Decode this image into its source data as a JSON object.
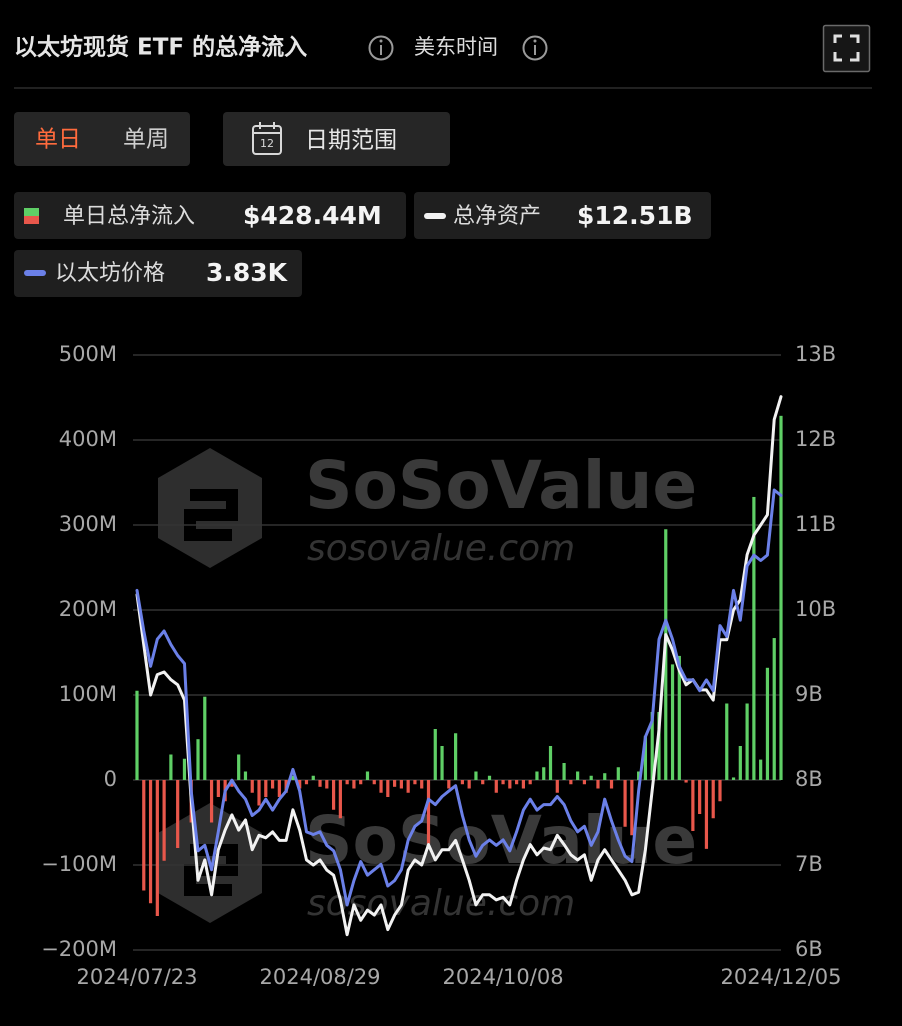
{
  "header": {
    "title": "以太坊现货 ETF 的总净流入",
    "timezone": "美东时间"
  },
  "controls": {
    "tabs": [
      "单日",
      "单周"
    ],
    "active_tab": 0,
    "date_range": "日期范围",
    "calendar_day": "12"
  },
  "watermark": {
    "brand": "SoSoValue",
    "site": "sosovalue.com"
  },
  "chart_data": {
    "type": "bar",
    "categories": [
      "2024/07/23",
      null,
      null,
      null,
      null,
      null,
      null,
      null,
      null,
      null,
      null,
      null,
      null,
      null,
      null,
      null,
      null,
      null,
      null,
      null,
      null,
      null,
      null,
      null,
      null,
      null,
      null,
      "2024/08/29",
      null,
      null,
      null,
      null,
      null,
      null,
      null,
      null,
      null,
      null,
      null,
      null,
      null,
      null,
      null,
      null,
      null,
      null,
      null,
      null,
      null,
      null,
      null,
      null,
      null,
      null,
      "2024/10/08",
      null,
      null,
      null,
      null,
      null,
      null,
      null,
      null,
      null,
      null,
      null,
      null,
      null,
      null,
      null,
      null,
      null,
      null,
      null,
      null,
      null,
      null,
      null,
      null,
      null,
      null,
      null,
      null,
      null,
      null,
      null,
      null,
      null,
      null,
      null,
      null,
      null,
      null,
      null,
      null,
      "2024/12/05"
    ],
    "ylim": [
      -200,
      500
    ],
    "yticks": [
      {
        "value": 500,
        "label": "500M"
      },
      {
        "value": 400,
        "label": "400M"
      },
      {
        "value": 300,
        "label": "300M"
      },
      {
        "value": 200,
        "label": "200M"
      },
      {
        "value": 100,
        "label": "100M"
      },
      0,
      {
        "value": -100,
        "label": "−100M"
      },
      {
        "value": -200,
        "label": "−200M"
      }
    ],
    "y2lim": [
      6,
      13
    ],
    "y2ticks": [
      {
        "value": 13,
        "label": "13B"
      },
      {
        "value": 12,
        "label": "12B"
      },
      {
        "value": 11,
        "label": "11B"
      },
      {
        "value": 10,
        "label": "10B"
      },
      {
        "value": 9,
        "label": "9B"
      },
      {
        "value": 8,
        "label": "8B"
      },
      {
        "value": 7,
        "label": "7B"
      },
      {
        "value": 6,
        "label": "6B"
      }
    ],
    "grid": true,
    "series": [
      {
        "name": "单日总净流入",
        "type": "bar",
        "positive_color": "#5fcf66",
        "negative_color": "#e8574b",
        "readout": "$428.44M",
        "values": [
          105,
          -130,
          -145,
          -160,
          -95,
          30,
          -80,
          25,
          -50,
          48,
          98,
          -50,
          -20,
          -25,
          -8,
          30,
          10,
          -15,
          -30,
          -20,
          -10,
          -20,
          -15,
          5,
          -10,
          -5,
          5,
          -8,
          -10,
          -35,
          -45,
          -5,
          -10,
          -5,
          10,
          -5,
          -15,
          -20,
          -8,
          -10,
          -15,
          -5,
          -10,
          -75,
          60,
          40,
          -10,
          55,
          -5,
          -10,
          10,
          -5,
          5,
          -15,
          -5,
          -10,
          -5,
          -10,
          -5,
          10,
          15,
          40,
          -15,
          20,
          -5,
          10,
          -5,
          5,
          -10,
          8,
          -10,
          15,
          -55,
          -65,
          10,
          52,
          80,
          80,
          295,
          136,
          146,
          -3,
          -60,
          -40,
          -81,
          -45,
          -25,
          90,
          3,
          40,
          90,
          333,
          24,
          132,
          167,
          428.44
        ]
      },
      {
        "name": "总净资产",
        "type": "line",
        "axis": "y2",
        "color": "#f2f2f2",
        "readout": "$12.51B",
        "values": [
          10.18,
          9.59,
          9.0,
          9.24,
          9.27,
          9.18,
          9.12,
          8.94,
          7.76,
          6.82,
          7.06,
          6.65,
          7.18,
          7.41,
          7.59,
          7.41,
          7.53,
          7.18,
          7.35,
          7.32,
          7.39,
          7.29,
          7.29,
          7.65,
          7.41,
          7.06,
          7.0,
          7.06,
          6.94,
          6.88,
          6.59,
          6.18,
          6.53,
          6.35,
          6.47,
          6.41,
          6.53,
          6.24,
          6.41,
          6.53,
          6.94,
          7.06,
          7.0,
          7.24,
          7.06,
          7.18,
          7.18,
          7.29,
          7.06,
          6.82,
          6.53,
          6.65,
          6.65,
          6.59,
          6.62,
          6.53,
          6.82,
          7.06,
          7.24,
          7.12,
          7.2,
          7.18,
          7.35,
          7.24,
          7.12,
          7.06,
          7.12,
          6.82,
          7.06,
          7.18,
          7.06,
          6.94,
          6.82,
          6.65,
          6.68,
          7.18,
          7.88,
          8.59,
          9.71,
          9.53,
          9.29,
          9.12,
          9.18,
          9.06,
          9.06,
          8.94,
          9.65,
          9.65,
          10.0,
          10.12,
          10.65,
          10.88,
          11.0,
          11.12,
          12.24,
          12.51
        ]
      },
      {
        "name": "以太坊价格",
        "type": "line",
        "axis": "own",
        "color": "#6b80e8",
        "readout": "3.83K",
        "values": [
          3.48,
          3.33,
          3.2,
          3.3,
          3.33,
          3.28,
          3.24,
          3.21,
          2.74,
          2.52,
          2.54,
          2.45,
          2.59,
          2.74,
          2.78,
          2.74,
          2.71,
          2.65,
          2.67,
          2.71,
          2.67,
          2.71,
          2.74,
          2.82,
          2.74,
          2.59,
          2.58,
          2.59,
          2.54,
          2.52,
          2.45,
          2.32,
          2.41,
          2.48,
          2.43,
          2.45,
          2.47,
          2.39,
          2.41,
          2.45,
          2.56,
          2.61,
          2.63,
          2.71,
          2.69,
          2.72,
          2.74,
          2.76,
          2.65,
          2.56,
          2.5,
          2.54,
          2.56,
          2.54,
          2.56,
          2.52,
          2.59,
          2.67,
          2.71,
          2.67,
          2.69,
          2.69,
          2.72,
          2.69,
          2.63,
          2.59,
          2.61,
          2.54,
          2.59,
          2.71,
          2.63,
          2.56,
          2.5,
          2.48,
          2.74,
          2.94,
          3.0,
          3.3,
          3.37,
          3.3,
          3.2,
          3.15,
          3.15,
          3.11,
          3.15,
          3.11,
          3.35,
          3.31,
          3.48,
          3.37,
          3.57,
          3.61,
          3.59,
          3.61,
          3.85,
          3.83
        ]
      }
    ]
  }
}
